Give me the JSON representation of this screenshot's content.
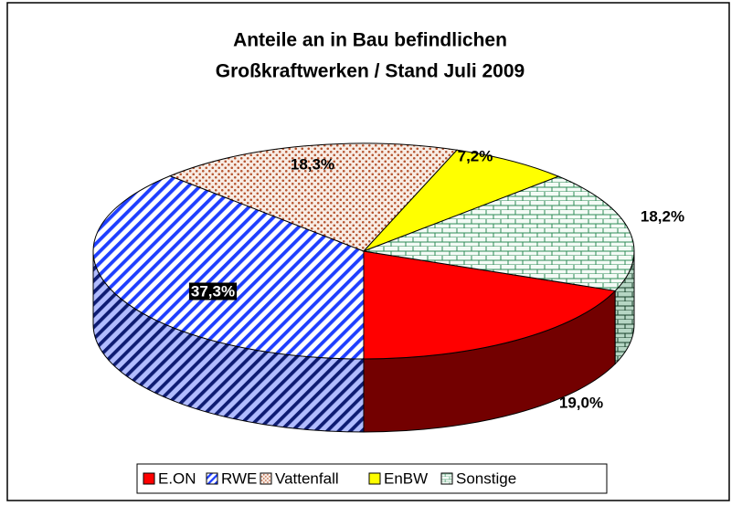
{
  "chart_data": {
    "type": "pie3d",
    "title_lines": [
      "Anteile an in Bau befindlichen",
      "Großkraftwerken / Stand Juli 2009"
    ],
    "categories": [
      "E.ON",
      "RWE",
      "Vattenfall",
      "EnBW",
      "Sonstige"
    ],
    "values": [
      19.0,
      37.3,
      18.3,
      7.2,
      18.2
    ],
    "value_labels": [
      "19,0%",
      "37,3%",
      "18,3%",
      "7,2%",
      "18,2%"
    ],
    "colors": [
      "#ff0000",
      "#1f3fff",
      "#b5542f",
      "#ffff00",
      "#2e8b57"
    ],
    "fills": [
      "solid",
      "hatch",
      "dots",
      "solid",
      "brick"
    ],
    "legend": "bottom"
  }
}
